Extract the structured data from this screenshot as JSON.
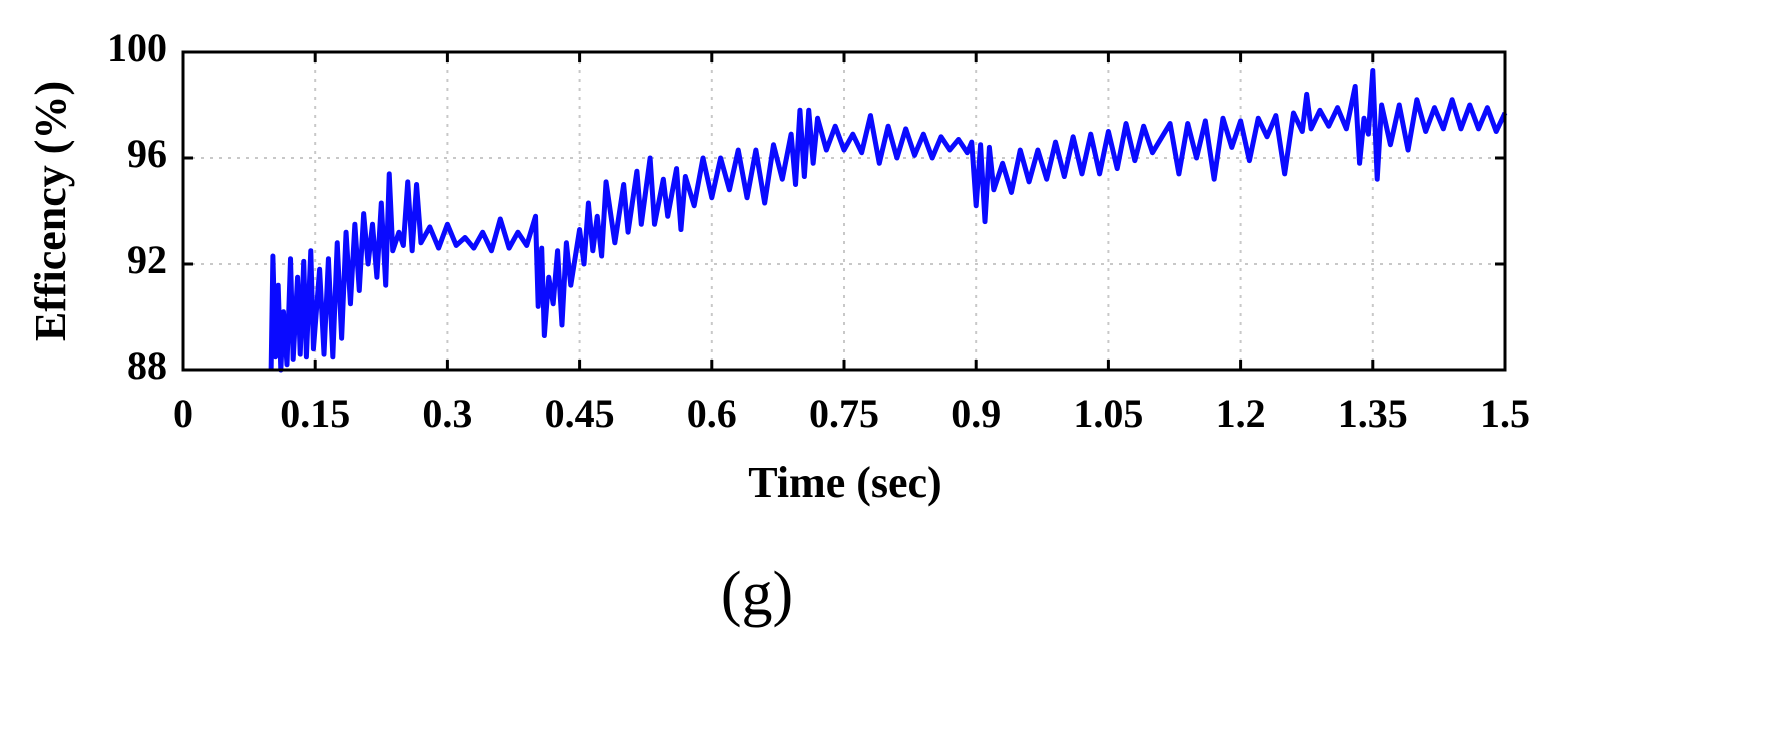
{
  "chart_data": {
    "type": "line",
    "ylabel": "Efficency (%)",
    "xlabel": "Time (sec)",
    "caption": "(g)",
    "color": "#0a0aff",
    "grid": true,
    "xlim": [
      0,
      1.5
    ],
    "xticks": [
      0,
      0.15,
      0.3,
      0.45,
      0.6,
      0.75,
      0.9,
      1.05,
      1.2,
      1.35,
      1.5
    ],
    "ylim": [
      88,
      100
    ],
    "yticks": [
      88,
      92,
      96,
      100
    ],
    "x": [
      0.1,
      0.102,
      0.105,
      0.108,
      0.111,
      0.114,
      0.118,
      0.122,
      0.125,
      0.13,
      0.133,
      0.137,
      0.14,
      0.145,
      0.148,
      0.155,
      0.16,
      0.165,
      0.17,
      0.175,
      0.18,
      0.185,
      0.19,
      0.195,
      0.2,
      0.205,
      0.21,
      0.215,
      0.22,
      0.225,
      0.23,
      0.234,
      0.238,
      0.245,
      0.25,
      0.255,
      0.26,
      0.265,
      0.27,
      0.28,
      0.29,
      0.3,
      0.31,
      0.32,
      0.33,
      0.34,
      0.35,
      0.36,
      0.37,
      0.38,
      0.39,
      0.4,
      0.403,
      0.407,
      0.41,
      0.415,
      0.42,
      0.425,
      0.43,
      0.435,
      0.44,
      0.45,
      0.455,
      0.46,
      0.465,
      0.47,
      0.475,
      0.48,
      0.49,
      0.5,
      0.505,
      0.515,
      0.52,
      0.53,
      0.535,
      0.545,
      0.55,
      0.56,
      0.565,
      0.57,
      0.58,
      0.59,
      0.6,
      0.61,
      0.62,
      0.63,
      0.64,
      0.65,
      0.66,
      0.67,
      0.68,
      0.69,
      0.695,
      0.7,
      0.705,
      0.71,
      0.715,
      0.72,
      0.73,
      0.74,
      0.75,
      0.76,
      0.77,
      0.78,
      0.79,
      0.8,
      0.81,
      0.82,
      0.83,
      0.84,
      0.85,
      0.86,
      0.87,
      0.88,
      0.89,
      0.895,
      0.9,
      0.905,
      0.91,
      0.915,
      0.92,
      0.93,
      0.94,
      0.95,
      0.96,
      0.97,
      0.98,
      0.99,
      1.0,
      1.01,
      1.02,
      1.03,
      1.04,
      1.05,
      1.06,
      1.07,
      1.08,
      1.09,
      1.1,
      1.12,
      1.13,
      1.14,
      1.15,
      1.16,
      1.17,
      1.18,
      1.19,
      1.2,
      1.21,
      1.22,
      1.23,
      1.24,
      1.25,
      1.26,
      1.27,
      1.275,
      1.28,
      1.29,
      1.3,
      1.31,
      1.32,
      1.33,
      1.335,
      1.34,
      1.345,
      1.35,
      1.355,
      1.36,
      1.37,
      1.38,
      1.39,
      1.4,
      1.41,
      1.42,
      1.43,
      1.44,
      1.45,
      1.46,
      1.47,
      1.48,
      1.49,
      1.5
    ],
    "values": [
      88,
      92.3,
      88.5,
      91.2,
      88,
      90.2,
      88.2,
      92.2,
      88.4,
      91.5,
      88.6,
      92.1,
      88.5,
      92.5,
      88.8,
      91.8,
      88.6,
      92.2,
      88.5,
      92.8,
      89.2,
      93.2,
      90.5,
      93.5,
      91,
      93.9,
      92,
      93.5,
      91.5,
      94.3,
      91.2,
      95.4,
      92.5,
      93.2,
      92.7,
      95.1,
      92.5,
      95,
      92.8,
      93.4,
      92.6,
      93.5,
      92.7,
      93,
      92.6,
      93.2,
      92.5,
      93.7,
      92.6,
      93.2,
      92.7,
      93.8,
      90.4,
      92.6,
      89.3,
      91.5,
      90.5,
      92.5,
      89.7,
      92.8,
      91.2,
      93.3,
      92,
      94.3,
      92.5,
      93.8,
      92.3,
      95.1,
      92.8,
      95,
      93.2,
      95.5,
      93.5,
      96,
      93.5,
      95.2,
      93.8,
      95.6,
      93.3,
      95.3,
      94.2,
      96,
      94.5,
      96,
      94.8,
      96.3,
      94.5,
      96.3,
      94.3,
      96.5,
      95.2,
      96.9,
      95,
      97.8,
      95.3,
      97.8,
      95.8,
      97.5,
      96.3,
      97.2,
      96.3,
      96.9,
      96.2,
      97.6,
      95.8,
      97.2,
      96,
      97.1,
      96.1,
      96.9,
      96,
      96.8,
      96.3,
      96.7,
      96.2,
      96.6,
      94.2,
      96.5,
      93.6,
      96.4,
      94.8,
      95.8,
      94.7,
      96.3,
      95.1,
      96.3,
      95.2,
      96.6,
      95.3,
      96.8,
      95.4,
      96.9,
      95.4,
      97,
      95.6,
      97.3,
      95.9,
      97.2,
      96.2,
      97.3,
      95.4,
      97.3,
      96,
      97.4,
      95.2,
      97.5,
      96.4,
      97.4,
      95.9,
      97.5,
      96.8,
      97.6,
      95.4,
      97.7,
      97,
      98.4,
      97.1,
      97.8,
      97.2,
      97.9,
      97.1,
      98.7,
      95.8,
      97.5,
      96.9,
      99.3,
      95.2,
      98,
      96.5,
      98,
      96.3,
      98.2,
      97,
      97.9,
      97.1,
      98.2,
      97.1,
      98,
      97.1,
      97.9,
      97,
      97.7
    ]
  }
}
